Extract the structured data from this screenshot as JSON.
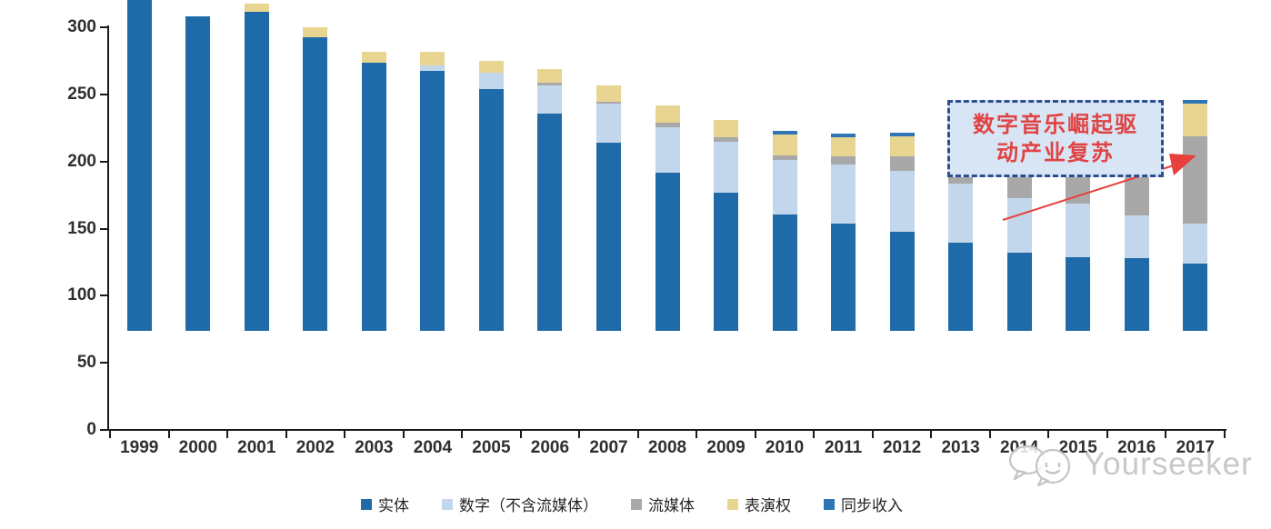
{
  "chart_data": {
    "type": "bar",
    "stacked": true,
    "title": "",
    "xlabel": "",
    "ylabel": "",
    "categories": [
      "1999",
      "2000",
      "2001",
      "2002",
      "2003",
      "2004",
      "2005",
      "2006",
      "2007",
      "2008",
      "2009",
      "2010",
      "2011",
      "2012",
      "2013",
      "2014",
      "2015",
      "2016",
      "2017"
    ],
    "series": [
      {
        "name": "实体",
        "color": "#1f6ba9",
        "values": [
          252,
          234,
          238,
          219,
          200,
          194,
          180,
          162,
          140,
          118,
          103,
          87,
          80,
          74,
          66,
          58,
          55,
          54,
          50
        ]
      },
      {
        "name": "数字（不含流媒体）",
        "color": "#c3d7ec",
        "values": [
          0,
          0,
          0,
          0,
          0,
          4,
          12,
          21,
          29,
          34,
          38,
          40,
          44,
          45,
          44,
          41,
          40,
          32,
          30
        ]
      },
      {
        "name": "流媒体",
        "color": "#a8a8a8",
        "values": [
          0,
          0,
          0,
          0,
          0,
          0,
          0,
          2,
          2,
          3,
          3,
          4,
          6,
          11,
          14,
          19,
          26,
          47,
          65
        ]
      },
      {
        "name": "表演权",
        "color": "#e8d592",
        "values": [
          0,
          0,
          6,
          7,
          8,
          10,
          9,
          10,
          12,
          13,
          13,
          15,
          14,
          15,
          17,
          18,
          22,
          23,
          24
        ]
      },
      {
        "name": "同步收入",
        "color": "#2e75b6",
        "values": [
          0,
          0,
          0,
          0,
          0,
          0,
          0,
          0,
          0,
          0,
          0,
          3,
          3,
          3,
          3,
          3,
          3,
          4,
          3
        ]
      }
    ],
    "ylim": [
      0,
      300
    ],
    "yticks": [
      0,
      50,
      100,
      150,
      200,
      250,
      300
    ],
    "grid": false,
    "legend_position": "bottom"
  },
  "annotation": {
    "line1": "数字音乐崛起驱",
    "line2": "动产业复苏",
    "text_color": "#e04343",
    "border_color": "#2e4d8f",
    "fill_color": "#d8e5f4",
    "arrow_color": "#e8403c"
  },
  "watermark": {
    "text": "Yourseeker",
    "color": "#c8c8c8",
    "icon": "chat-bubbles-icon"
  }
}
